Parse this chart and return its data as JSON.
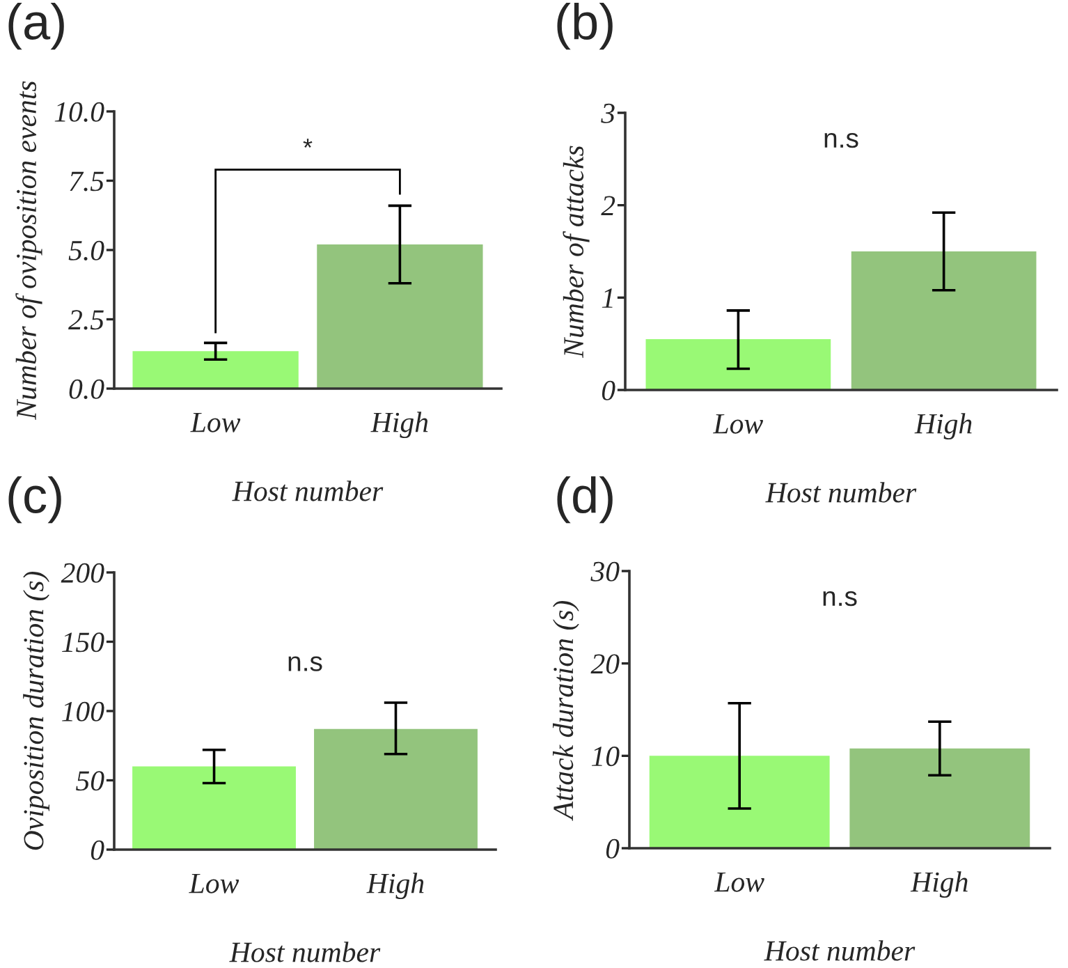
{
  "chart_data": [
    {
      "type": "bar",
      "title": "(a)",
      "xlabel": "Host number",
      "ylabel": "Number of oviposition events",
      "categories": [
        "Low",
        "High"
      ],
      "values": [
        1.35,
        5.2
      ],
      "colors": [
        "#99f975",
        "#93c47d"
      ],
      "errors": [
        [
          1.05,
          1.65
        ],
        [
          3.8,
          6.6
        ]
      ],
      "ylim": [
        0,
        10
      ],
      "yticks": [
        {
          "value": 0,
          "label": "0.0"
        },
        2.5,
        {
          "value": 5,
          "label": "5.0"
        },
        7.5,
        {
          "value": 10,
          "label": "10.0"
        }
      ],
      "annotations": [
        "*"
      ],
      "grid": false,
      "legend": false
    },
    {
      "type": "bar",
      "title": "(b)",
      "xlabel": "Host number",
      "ylabel": "Number of attacks",
      "categories": [
        "Low",
        "High"
      ],
      "values": [
        0.55,
        1.5
      ],
      "colors": [
        "#99f975",
        "#93c47d"
      ],
      "errors": [
        [
          0.23,
          0.86
        ],
        [
          1.08,
          1.92
        ]
      ],
      "ylim": [
        0,
        3
      ],
      "yticks": [
        0,
        1,
        2,
        3
      ],
      "annotations": [
        "n.s"
      ],
      "grid": false,
      "legend": false
    },
    {
      "type": "bar",
      "title": "(c)",
      "xlabel": "Host number",
      "ylabel": "Oviposition duration (s)",
      "categories": [
        "Low",
        "High"
      ],
      "values": [
        60,
        87
      ],
      "colors": [
        "#99f975",
        "#93c47d"
      ],
      "errors": [
        [
          48,
          72
        ],
        [
          69,
          106
        ]
      ],
      "ylim": [
        0,
        200
      ],
      "yticks": [
        0,
        50,
        100,
        150,
        200
      ],
      "annotations": [
        "n.s"
      ],
      "grid": false,
      "legend": false
    },
    {
      "type": "bar",
      "title": "(d)",
      "xlabel": "Host number",
      "ylabel": "Attack duration (s)",
      "categories": [
        "Low",
        "High"
      ],
      "values": [
        10,
        10.8
      ],
      "colors": [
        "#99f975",
        "#93c47d"
      ],
      "errors": [
        [
          4.3,
          15.7
        ],
        [
          7.9,
          13.7
        ]
      ],
      "ylim": [
        0,
        30
      ],
      "yticks": [
        0,
        10,
        20,
        30
      ],
      "annotations": [
        "n.s"
      ],
      "grid": false,
      "legend": false
    }
  ]
}
